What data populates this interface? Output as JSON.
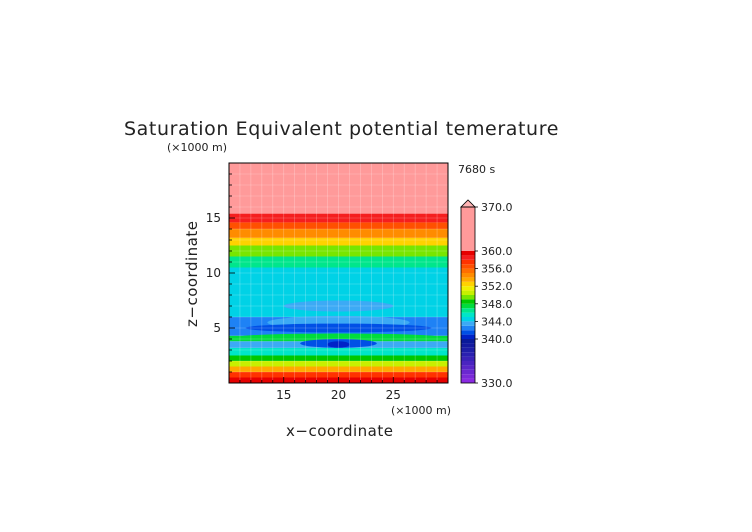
{
  "chart_data": {
    "type": "heatmap",
    "title": "Saturation Equivalent potential temerature",
    "time_label": "7680 s",
    "xlabel": "x−coordinate",
    "ylabel": "z−coordinate",
    "x_unit": "(×1000 m)",
    "y_unit": "(×1000 m)",
    "xlim": [
      10,
      30
    ],
    "ylim": [
      0,
      20
    ],
    "x_ticks": [
      15,
      20,
      25
    ],
    "y_ticks": [
      5,
      10,
      15
    ],
    "grid": true,
    "colorbar": {
      "position": "right",
      "min": 330,
      "max": 370,
      "tick_values": [
        370.0,
        360.0,
        356.0,
        352.0,
        348.0,
        344.0,
        340.0,
        330.0
      ],
      "tick_labels": [
        "370.0",
        "360.0",
        "356.0",
        "352.0",
        "348.0",
        "344.0",
        "340.0",
        "330.0"
      ],
      "levels": [
        {
          "from": 330,
          "to": 331,
          "color": "#8a2be2"
        },
        {
          "from": 331,
          "to": 332,
          "color": "#7a2ad8"
        },
        {
          "from": 332,
          "to": 333,
          "color": "#6a28d0"
        },
        {
          "from": 333,
          "to": 334,
          "color": "#5a26c8"
        },
        {
          "from": 334,
          "to": 335,
          "color": "#4a24c0"
        },
        {
          "from": 335,
          "to": 336,
          "color": "#3a22b8"
        },
        {
          "from": 336,
          "to": 337,
          "color": "#2a20b0"
        },
        {
          "from": 337,
          "to": 338,
          "color": "#1e1ea8"
        },
        {
          "from": 338,
          "to": 339,
          "color": "#141aa0"
        },
        {
          "from": 339,
          "to": 340,
          "color": "#0a1a9a"
        },
        {
          "from": 340,
          "to": 341,
          "color": "#0022c8"
        },
        {
          "from": 341,
          "to": 342,
          "color": "#0050e6"
        },
        {
          "from": 342,
          "to": 343,
          "color": "#1e82f5"
        },
        {
          "from": 343,
          "to": 344,
          "color": "#3caaf5"
        },
        {
          "from": 344,
          "to": 345,
          "color": "#00d2e6"
        },
        {
          "from": 345,
          "to": 346,
          "color": "#00e6c8"
        },
        {
          "from": 346,
          "to": 347,
          "color": "#00e68c"
        },
        {
          "from": 347,
          "to": 348,
          "color": "#00dc3c"
        },
        {
          "from": 348,
          "to": 349,
          "color": "#00c800"
        },
        {
          "from": 349,
          "to": 350,
          "color": "#78e600"
        },
        {
          "from": 350,
          "to": 351,
          "color": "#c8f000"
        },
        {
          "from": 351,
          "to": 352,
          "color": "#f0f000"
        },
        {
          "from": 352,
          "to": 353,
          "color": "#ffd200"
        },
        {
          "from": 353,
          "to": 354,
          "color": "#ffaa00"
        },
        {
          "from": 354,
          "to": 355,
          "color": "#ff8c00"
        },
        {
          "from": 355,
          "to": 356,
          "color": "#ff6e00"
        },
        {
          "from": 356,
          "to": 357,
          "color": "#ff5000"
        },
        {
          "from": 357,
          "to": 358,
          "color": "#ff3200"
        },
        {
          "from": 358,
          "to": 359,
          "color": "#f51e1e"
        },
        {
          "from": 359,
          "to": 360,
          "color": "#e60000"
        },
        {
          "from": 360,
          "to": 370,
          "color": "#ff9a9a"
        },
        {
          "from": 370,
          "to": 372,
          "color": "#ffb4b4"
        }
      ]
    },
    "bands": [
      {
        "z0": 0.0,
        "z1": 0.5,
        "value": 359.5
      },
      {
        "z0": 0.5,
        "z1": 1.0,
        "value": 357.5
      },
      {
        "z0": 1.0,
        "z1": 1.5,
        "value": 353.5
      },
      {
        "z0": 1.5,
        "z1": 2.0,
        "value": 350.5
      },
      {
        "z0": 2.0,
        "z1": 2.5,
        "value": 348.5
      },
      {
        "z0": 2.5,
        "z1": 3.2,
        "value": 345.5
      },
      {
        "z0": 3.2,
        "z1": 3.8,
        "value": 343.5
      },
      {
        "z0": 3.8,
        "z1": 4.3,
        "value": 347.5
      },
      {
        "z0": 4.3,
        "z1": 6.0,
        "value": 342.5
      },
      {
        "z0": 6.0,
        "z1": 10.5,
        "value": 344.5
      },
      {
        "z0": 10.5,
        "z1": 11.5,
        "value": 346.5
      },
      {
        "z0": 11.5,
        "z1": 12.5,
        "value": 349.5
      },
      {
        "z0": 12.5,
        "z1": 13.2,
        "value": 352.5
      },
      {
        "z0": 13.2,
        "z1": 14.0,
        "value": 354.5
      },
      {
        "z0": 14.0,
        "z1": 14.6,
        "value": 356.5
      },
      {
        "z0": 14.6,
        "z1": 15.4,
        "value": 358.5
      },
      {
        "z0": 15.4,
        "z1": 20.0,
        "value": 365.0
      }
    ],
    "features": [
      {
        "kind": "ellipse",
        "cx": 20.0,
        "cz": 7.0,
        "rx": 5.0,
        "rz": 0.5,
        "value": 343.5
      },
      {
        "kind": "ellipse",
        "cx": 20.0,
        "cz": 5.5,
        "rx": 6.5,
        "rz": 0.6,
        "value": 343.5
      },
      {
        "kind": "ellipse",
        "cx": 20.0,
        "cz": 5.0,
        "rx": 8.5,
        "rz": 0.4,
        "value": 341.5
      },
      {
        "kind": "ellipse",
        "cx": 20.0,
        "cz": 4.2,
        "rx": 9.0,
        "rz": 0.3,
        "value": 347.5
      },
      {
        "kind": "ellipse",
        "cx": 20.0,
        "cz": 3.6,
        "rx": 3.5,
        "rz": 0.4,
        "value": 341.5
      },
      {
        "kind": "ellipse",
        "cx": 20.0,
        "cz": 3.5,
        "rx": 1.0,
        "rz": 0.3,
        "value": 340.5
      }
    ]
  }
}
